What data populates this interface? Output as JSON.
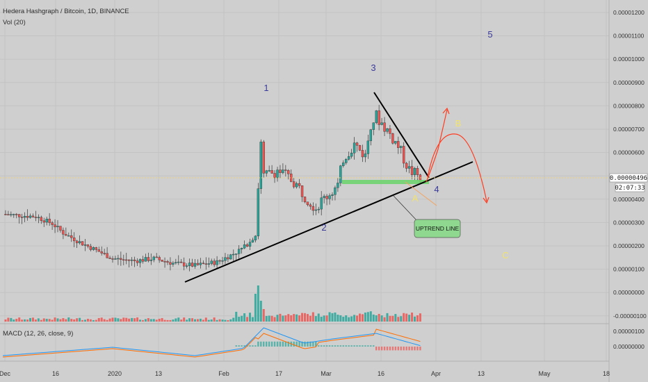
{
  "header": {
    "symbol_line": "Hedera Hashgraph / Bitcoin, 1D, BINANCE",
    "volume_label": "Vol (20)",
    "macd_label": "MACD (12, 26, close, 9)"
  },
  "price_axis": {
    "ticks": [
      "0.00001200",
      "0.00001100",
      "0.00001000",
      "0.00000900",
      "0.00000800",
      "0.00000700",
      "0.00000600",
      "0.00000500",
      "0.00000400",
      "0.00000300",
      "0.00000200",
      "0.00000100",
      "0.00000000",
      "-0.00000100"
    ],
    "current_price": "0.00000496",
    "countdown": "02:07:33"
  },
  "macd_axis": {
    "ticks": [
      "0.00000100",
      "0.00000000"
    ]
  },
  "time_axis": {
    "ticks": [
      "Dec",
      "16",
      "2020",
      "13",
      "Feb",
      "17",
      "Mar",
      "16",
      "Apr",
      "13",
      "May",
      "18"
    ]
  },
  "annotations": {
    "wave_labels": [
      "1",
      "2",
      "3",
      "4",
      "5",
      "A",
      "B",
      "C"
    ],
    "callout": "UPTREND LINE"
  },
  "colors": {
    "up": "#26a69a",
    "down": "#ef5350",
    "trendline": "#000000",
    "projection": "#ff3b1f",
    "orange_path": "#f4a460",
    "wave_numbers": "#3a3a9a",
    "wave_letters": "#f2e36b",
    "support_zone": "#6fd36f",
    "callout_fill": "#8fd88f",
    "macd_line": "#2196f3",
    "signal_line": "#ff6d00"
  },
  "chart_data": {
    "type": "candlestick",
    "title": "Hedera Hashgraph / Bitcoin, 1D, BINANCE",
    "ylim": [
      -1.1e-06,
      1.25e-05
    ],
    "x_range": [
      "2019-11-27",
      "2020-05-20"
    ],
    "last_close": 4.96e-06,
    "series": [
      {
        "name": "Vol (20)",
        "description": "volume histogram"
      },
      {
        "name": "MACD (12, 26, close, 9)",
        "description": "MACD line, signal line and histogram"
      }
    ],
    "annotations": [
      {
        "label": "1",
        "date": "2020-02-09",
        "value": 8.1e-06
      },
      {
        "label": "2",
        "date": "2020-02-23",
        "value": 2.7e-06
      },
      {
        "label": "3",
        "date": "2020-03-12",
        "value": 9.1e-06
      },
      {
        "label": "4",
        "date": "2020-03-26",
        "value": 3.8e-06
      },
      {
        "label": "5",
        "date": "2020-04-16",
        "value": 1.06e-05
      },
      {
        "label": "A",
        "date": "2020-03-22",
        "value": 3.6e-06
      },
      {
        "label": "B",
        "date": "2020-04-07",
        "value": 6.9e-06
      },
      {
        "label": "C",
        "date": "2020-04-21",
        "value": 1.6e-06
      },
      {
        "label": "UPTREND LINE",
        "date": "2020-03-29",
        "value": 3e-06
      }
    ],
    "trendlines": [
      {
        "name": "uptrend",
        "from": [
          "2020-01-12",
          1.3e-06
        ],
        "to": [
          "2020-04-06",
          5.7e-06
        ]
      },
      {
        "name": "descending",
        "from": [
          "2020-03-13",
          8.7e-06
        ],
        "to": [
          "2020-03-27",
          5e-06
        ]
      }
    ]
  }
}
